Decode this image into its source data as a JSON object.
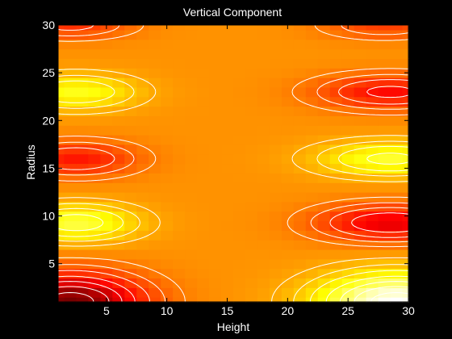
{
  "chart_data": {
    "type": "heatmap",
    "title": "Vertical Component",
    "xlabel": "Height",
    "ylabel": "Radius",
    "xlim": [
      1,
      30
    ],
    "ylim": [
      1,
      30
    ],
    "xticks": [
      5,
      10,
      15,
      20,
      25,
      30
    ],
    "yticks": [
      5,
      10,
      15,
      20,
      25,
      30
    ],
    "grid": false,
    "colormap": "hot",
    "contour_color": "#ffffff",
    "background_color": "#000000",
    "contour_levels": [
      -0.9,
      -0.75,
      -0.6,
      -0.45,
      -0.3,
      -0.18,
      -0.08,
      0.08,
      0.18,
      0.3,
      0.45,
      0.6,
      0.75,
      0.9
    ],
    "features": [
      {
        "x": 2,
        "y": 30,
        "value": -0.35,
        "sx": 5,
        "sy": 1.4
      },
      {
        "x": 2.5,
        "y": 23,
        "value": 0.45,
        "sx": 5,
        "sy": 1.8
      },
      {
        "x": 2.5,
        "y": 16,
        "value": -0.45,
        "sx": 5,
        "sy": 1.8
      },
      {
        "x": 2.5,
        "y": 9.3,
        "value": 0.55,
        "sx": 5,
        "sy": 1.9
      },
      {
        "x": 2,
        "y": 1,
        "value": -1.0,
        "sx": 6,
        "sy": 3
      },
      {
        "x": 28,
        "y": 30,
        "value": -0.3,
        "sx": 5,
        "sy": 1.4
      },
      {
        "x": 28.5,
        "y": 23,
        "value": -0.5,
        "sx": 6,
        "sy": 1.8
      },
      {
        "x": 28.5,
        "y": 16,
        "value": 0.5,
        "sx": 6,
        "sy": 1.8
      },
      {
        "x": 28.5,
        "y": 9.3,
        "value": -0.6,
        "sx": 6,
        "sy": 1.9
      },
      {
        "x": 29,
        "y": 1,
        "value": 1.0,
        "sx": 6.5,
        "sy": 3
      }
    ]
  }
}
